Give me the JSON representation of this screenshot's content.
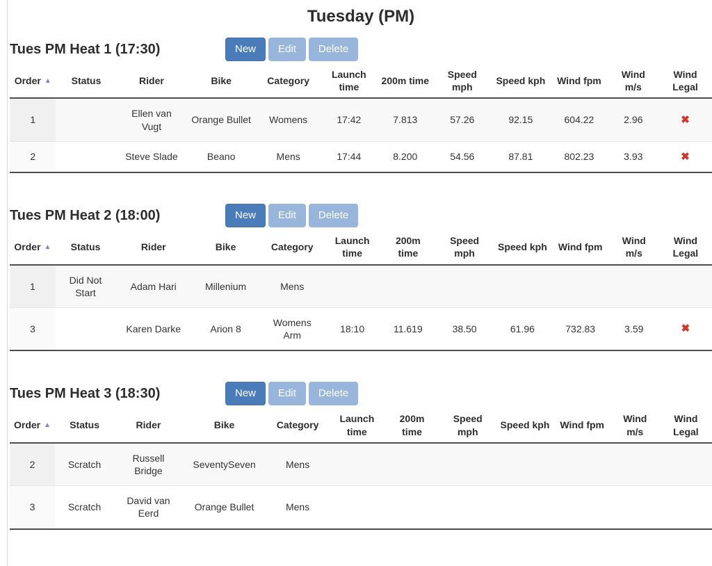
{
  "page": {
    "title": "Tuesday (PM)"
  },
  "toolbar": {
    "new_label": "New",
    "edit_label": "Edit",
    "delete_label": "Delete"
  },
  "icons": {
    "sort_asc": "▲",
    "wind_illegal": "✖"
  },
  "colors": {
    "primary_button": "#4a7cba",
    "muted_button": "#98b6db",
    "sort_arrow": "#7b7fd8",
    "illegal_red": "#d0342c"
  },
  "columns": [
    {
      "key": "order",
      "label": "Order",
      "sort_icon": "▲"
    },
    {
      "key": "status",
      "label": "Status"
    },
    {
      "key": "rider",
      "label": "Rider"
    },
    {
      "key": "bike",
      "label": "Bike"
    },
    {
      "key": "category",
      "label": "Category"
    },
    {
      "key": "launch_time",
      "label": "Launch time"
    },
    {
      "key": "time_200m",
      "label": "200m time"
    },
    {
      "key": "speed_mph",
      "label": "Speed mph"
    },
    {
      "key": "speed_kph",
      "label": "Speed kph"
    },
    {
      "key": "wind_fpm",
      "label": "Wind fpm"
    },
    {
      "key": "wind_ms",
      "label": "Wind m/s"
    },
    {
      "key": "wind_legal",
      "label": "Wind Legal"
    }
  ],
  "heats": [
    {
      "title": "Tues PM Heat 1 (17:30)",
      "rows": [
        {
          "cells": [
            "1",
            "",
            "Ellen van Vugt",
            "Orange Bullet",
            "Womens",
            "17:42",
            "7.813",
            "57.26",
            "92.15",
            "604.22",
            "2.96",
            "✖"
          ]
        },
        {
          "cells": [
            "2",
            "",
            "Steve Slade",
            "Beano",
            "Mens",
            "17:44",
            "8.200",
            "54.56",
            "87.81",
            "802.23",
            "3.93",
            "✖"
          ]
        }
      ]
    },
    {
      "title": "Tues PM Heat 2 (18:00)",
      "rows": [
        {
          "cells": [
            "1",
            "Did Not Start",
            "Adam Hari",
            "Millenium",
            "Mens",
            "",
            "",
            "",
            "",
            "",
            "",
            ""
          ]
        },
        {
          "cells": [
            "3",
            "",
            "Karen Darke",
            "Arion 8",
            "Womens Arm",
            "18:10",
            "11.619",
            "38.50",
            "61.96",
            "732.83",
            "3.59",
            "✖"
          ]
        }
      ]
    },
    {
      "title": "Tues PM Heat 3 (18:30)",
      "rows": [
        {
          "cells": [
            "2",
            "Scratch",
            "Russell Bridge",
            "SeventySeven",
            "Mens",
            "",
            "",
            "",
            "",
            "",
            "",
            ""
          ]
        },
        {
          "cells": [
            "3",
            "Scratch",
            "David van Eerd",
            "Orange Bullet",
            "Mens",
            "",
            "",
            "",
            "",
            "",
            "",
            ""
          ]
        }
      ]
    }
  ]
}
